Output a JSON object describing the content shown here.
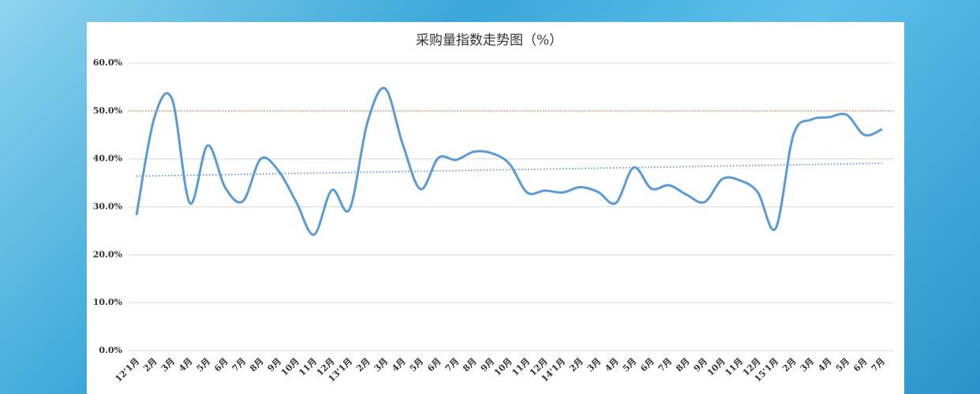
{
  "chart_data": {
    "type": "line",
    "title": "采购量指数走势图（%）",
    "categories": [
      "12'1月",
      "2月",
      "3月",
      "4月",
      "5月",
      "6月",
      "7月",
      "8月",
      "9月",
      "10月",
      "11月",
      "12月",
      "13'1月",
      "2月",
      "3月",
      "4月",
      "5月",
      "6月",
      "7月",
      "8月",
      "9月",
      "10月",
      "11月",
      "12月",
      "14'1月",
      "2月",
      "3月",
      "4月",
      "5月",
      "6月",
      "7月",
      "8月",
      "9月",
      "10月",
      "11月",
      "12月",
      "15'1月",
      "2月",
      "3月",
      "4月",
      "5月",
      "6月",
      "7月"
    ],
    "series": [
      {
        "color": "#5b9bd5",
        "values": [
          28.3,
          48.5,
          52.5,
          30.8,
          42.8,
          34,
          31.2,
          40,
          37.5,
          31,
          24.2,
          33.5,
          29.5,
          47.5,
          54.7,
          43,
          33.7,
          40.2,
          39.8,
          41.5,
          41.2,
          39,
          33,
          33.4,
          33,
          34.1,
          33.1,
          30.8,
          38.2,
          33.8,
          34.5,
          32.5,
          31,
          35.8,
          35.5,
          33,
          25.5,
          45,
          48.2,
          48.7,
          49.2,
          45,
          46.2
        ]
      }
    ],
    "reference_line": {
      "value": 50,
      "color": "#ed7d31"
    },
    "trendline": {
      "start": 36.4,
      "end": 39.1,
      "color": "#5b9bd5"
    },
    "ylim": [
      0,
      60
    ],
    "yticks": [
      {
        "value": 0,
        "label": "0.0%"
      },
      {
        "value": 10,
        "label": "10.0%"
      },
      {
        "value": 20,
        "label": "20.0%"
      },
      {
        "value": 30,
        "label": "30.0%"
      },
      {
        "value": 40,
        "label": "40.0%"
      },
      {
        "value": 50,
        "label": "50.0%"
      },
      {
        "value": 60,
        "label": "60.0%"
      }
    ],
    "grid": true
  }
}
